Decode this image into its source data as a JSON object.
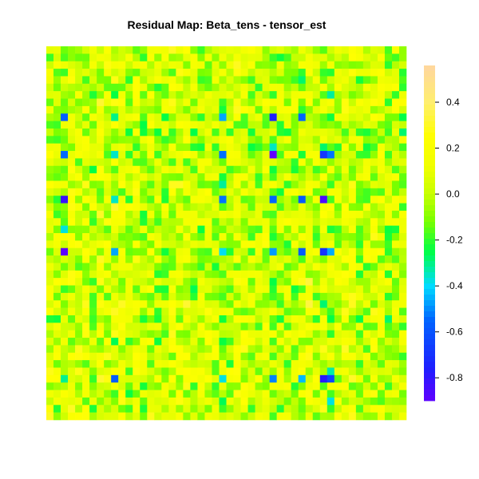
{
  "chart_data": {
    "type": "heatmap",
    "title": "Residual Map: Beta_tens - tensor_est",
    "xlabel": "",
    "ylabel": "",
    "grid": false,
    "legend": "right",
    "rows": 50,
    "cols": 50,
    "colorbar": {
      "range": [
        -0.9,
        0.56
      ],
      "ticks": [
        0.4,
        0.2,
        0.0,
        -0.2,
        -0.4,
        -0.6,
        -0.8
      ],
      "tick_labels": [
        "0.4",
        "0.2",
        "0.0",
        "-0.2",
        "-0.4",
        "-0.6",
        "-0.8"
      ],
      "palette": "rainbow (purple → blue → cyan → green → yellow → tan)"
    },
    "data_description": "Residual values mostly between -0.2 and 0.2; strongest negatives (about -0.9 to -0.6) concentrated in a few columns/rows"
  }
}
